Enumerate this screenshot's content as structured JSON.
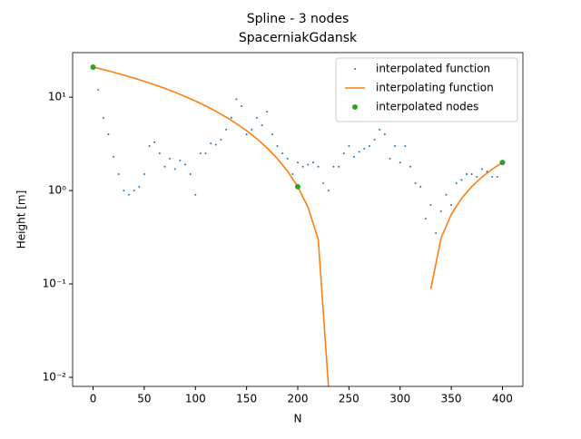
{
  "chart_data": {
    "type": "line",
    "title": "Spline - 3 nodes",
    "subtitle": "SpacerniakGdansk",
    "xlabel": "N",
    "ylabel": "Height [m]",
    "log_y": true,
    "legend": "upper right",
    "xlim": [
      -20,
      420
    ],
    "xticks": [
      0,
      50,
      100,
      150,
      200,
      250,
      300,
      350,
      400
    ],
    "ylim": [
      0.008,
      30
    ],
    "yticks": [
      {
        "value": 0.01,
        "label": "10⁻²"
      },
      {
        "value": 0.1,
        "label": "10⁻¹"
      },
      {
        "value": 1,
        "label": "10⁰"
      },
      {
        "value": 10,
        "label": "10¹"
      }
    ],
    "series": [
      {
        "name": "interpolated function",
        "style": "dots",
        "color": "#1f77b4",
        "x": [
          0,
          5,
          10,
          15,
          20,
          25,
          30,
          35,
          40,
          45,
          50,
          55,
          60,
          65,
          70,
          75,
          80,
          85,
          90,
          95,
          100,
          105,
          110,
          115,
          120,
          125,
          130,
          135,
          140,
          145,
          150,
          155,
          160,
          165,
          170,
          175,
          180,
          185,
          190,
          195,
          200,
          205,
          210,
          215,
          220,
          225,
          230,
          235,
          240,
          245,
          250,
          255,
          260,
          265,
          270,
          275,
          280,
          285,
          290,
          295,
          300,
          305,
          310,
          315,
          320,
          325,
          330,
          335,
          340,
          345,
          350,
          355,
          360,
          365,
          370,
          375,
          380,
          385,
          390,
          395,
          400
        ],
        "values": [
          20,
          12,
          6,
          4,
          2.3,
          1.5,
          1.0,
          0.9,
          1.0,
          1.1,
          1.5,
          3,
          3.3,
          2.5,
          1.8,
          2.2,
          1.7,
          2.1,
          1.9,
          1.5,
          0.9,
          2.5,
          2.5,
          3.2,
          3.1,
          3.5,
          4.5,
          6,
          9.5,
          8,
          4,
          4.5,
          6,
          5,
          7,
          4,
          3,
          2.5,
          2.2,
          1.5,
          2,
          1.8,
          1.9,
          2,
          1.8,
          1.2,
          1,
          1.8,
          1.8,
          2.5,
          3,
          2.3,
          2.6,
          2.8,
          3,
          3.5,
          4.5,
          4,
          2.2,
          3,
          2,
          3,
          1.8,
          1.2,
          1.1,
          0.5,
          0.7,
          0.35,
          0.6,
          0.9,
          0.7,
          1.2,
          1.3,
          1.5,
          1.5,
          1.4,
          1.7,
          1.6,
          1.4,
          1.4,
          2
        ]
      },
      {
        "name": "interpolating function",
        "style": "line",
        "color": "#ff7f0e",
        "x": [
          0,
          10,
          20,
          30,
          40,
          50,
          60,
          70,
          80,
          90,
          100,
          110,
          120,
          130,
          140,
          150,
          160,
          170,
          180,
          190,
          200,
          210,
          220,
          230,
          240,
          250,
          260,
          270,
          280,
          290,
          300,
          310,
          320,
          330,
          340,
          350,
          360,
          370,
          380,
          390,
          400
        ],
        "values": [
          21,
          19.746,
          18.495,
          17.253,
          16.022,
          14.806,
          13.61,
          12.438,
          11.293,
          10.179,
          9.1,
          8.06,
          7.063,
          6.113,
          5.214,
          4.369,
          3.582,
          2.858,
          2.201,
          1.613,
          1.1,
          0.663,
          0.3,
          0.008,
          null,
          null,
          null,
          null,
          null,
          null,
          null,
          null,
          null,
          0.088,
          0.31,
          0.556,
          0.822,
          1.103,
          1.395,
          1.696,
          2
        ]
      },
      {
        "name": "interpolated nodes",
        "style": "markers",
        "color": "#2ca02c",
        "x": [
          0,
          200,
          400
        ],
        "values": [
          21,
          1.1,
          2
        ]
      }
    ]
  }
}
